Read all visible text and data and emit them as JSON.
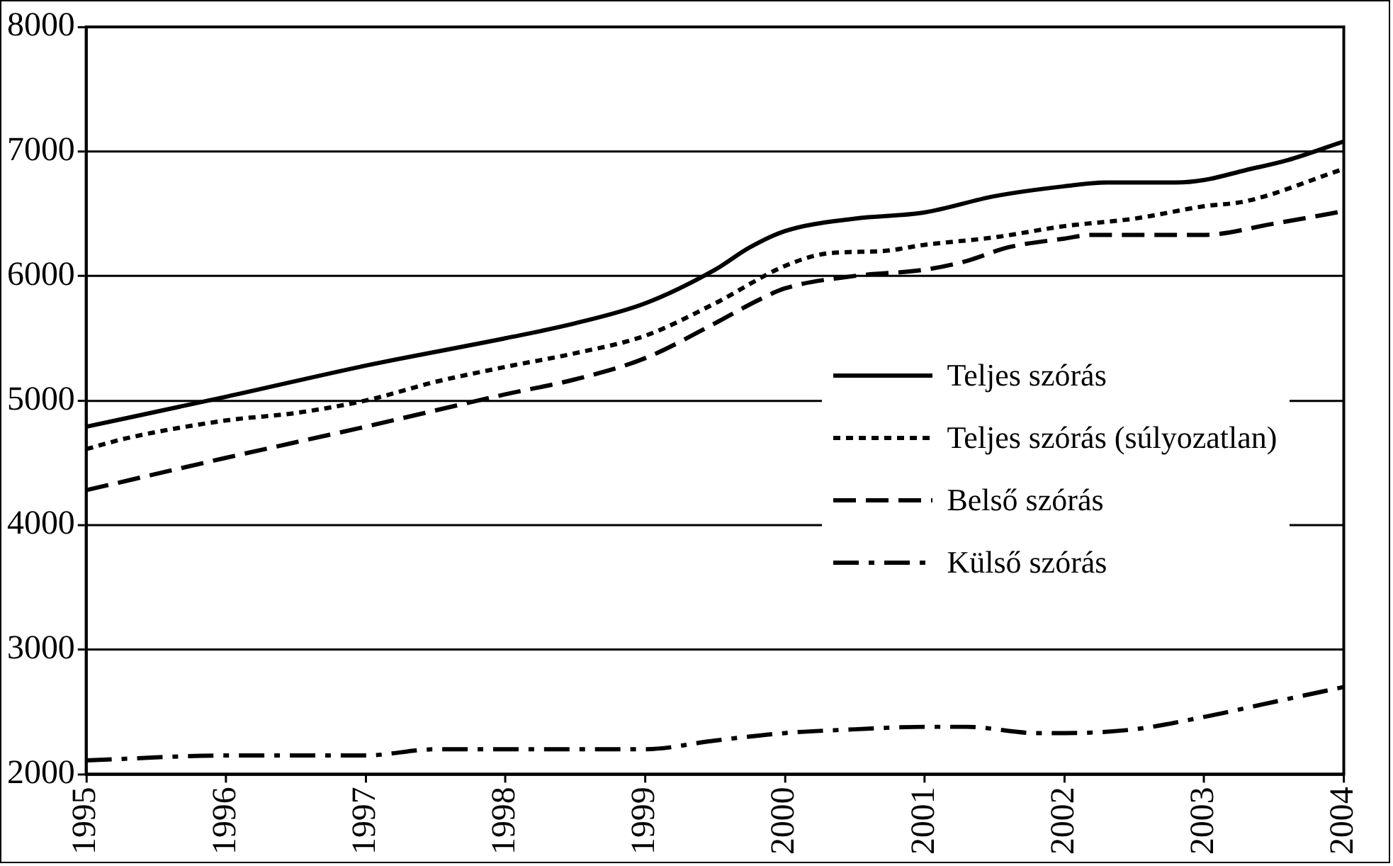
{
  "chart_data": {
    "type": "line",
    "xlim": [
      1995,
      2004
    ],
    "xticks": [
      1995,
      1996,
      1997,
      1998,
      1999,
      2000,
      2001,
      2002,
      2003,
      2004
    ],
    "ylim": [
      2000,
      8000
    ],
    "yticks": [
      2000,
      3000,
      4000,
      5000,
      6000,
      7000,
      8000
    ],
    "grid": "y",
    "legend": "right",
    "marker": "none",
    "series": [
      {
        "name": "Teljes szórás",
        "color": "#000000",
        "line_style": "solid",
        "x": [
          1995,
          1996,
          1997,
          1998,
          1998.5,
          1999,
          1999.5,
          1999.75,
          2000,
          2000.5,
          2001,
          2001.5,
          2002,
          2002.3,
          2002.8,
          2003,
          2003.3,
          2003.6,
          2004
        ],
        "values": [
          4790,
          5030,
          5280,
          5500,
          5620,
          5780,
          6050,
          6230,
          6360,
          6460,
          6510,
          6640,
          6720,
          6750,
          6750,
          6770,
          6850,
          6930,
          7080
        ]
      },
      {
        "name": "Teljes szórás (súlyozatlan)",
        "color": "#000000",
        "line_style": "dotted",
        "x": [
          1995,
          1995.3,
          1996,
          1996.5,
          1997,
          1997.5,
          1998,
          1998.5,
          1999,
          1999.5,
          2000,
          2000.3,
          2000.7,
          2001,
          2001.5,
          2002,
          2002.5,
          2003,
          2003.3,
          2004
        ],
        "values": [
          4610,
          4700,
          4840,
          4900,
          5000,
          5150,
          5270,
          5380,
          5520,
          5780,
          6080,
          6180,
          6200,
          6250,
          6310,
          6400,
          6460,
          6560,
          6600,
          6860
        ]
      },
      {
        "name": "Belső szórás",
        "color": "#000000",
        "line_style": "dashed",
        "x": [
          1995,
          1996,
          1997,
          1998,
          1998.5,
          1999,
          1999.5,
          1999.8,
          2000,
          2000.5,
          2001,
          2001.3,
          2001.6,
          2002,
          2002.2,
          2002.7,
          2003,
          2003.5,
          2004
        ],
        "values": [
          4280,
          4540,
          4790,
          5050,
          5170,
          5340,
          5620,
          5800,
          5900,
          6000,
          6050,
          6120,
          6230,
          6300,
          6330,
          6330,
          6330,
          6420,
          6520
        ]
      },
      {
        "name": "Külső szórás",
        "color": "#000000",
        "line_style": "dashdot",
        "x": [
          1995,
          1996,
          1997,
          1997.5,
          1998,
          1999,
          1999.5,
          2000,
          2000.5,
          2001,
          2001.3,
          2001.8,
          2002,
          2002.5,
          2003,
          2003.5,
          2004
        ],
        "values": [
          2110,
          2150,
          2150,
          2200,
          2200,
          2200,
          2270,
          2330,
          2360,
          2380,
          2380,
          2330,
          2330,
          2360,
          2460,
          2580,
          2700
        ]
      }
    ]
  }
}
